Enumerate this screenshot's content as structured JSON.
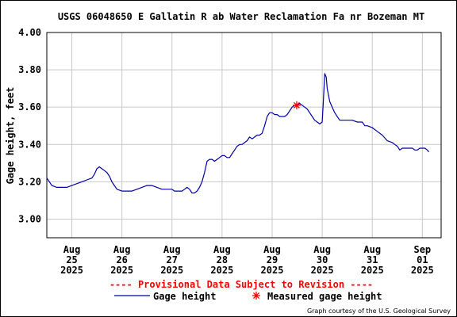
{
  "chart_data": {
    "type": "line",
    "title": "USGS 06048650 E Gallatin R ab Water Reclamation Fa nr Bozeman MT",
    "ylabel": "Gage height, feet",
    "xlabel": "",
    "xlim": [
      0,
      7.5
    ],
    "ylim": [
      2.9,
      4.0
    ],
    "yticks": [
      3.0,
      3.2,
      3.4,
      3.6,
      3.8,
      4.0
    ],
    "ytick_labels": [
      "3.00",
      "3.20",
      "3.40",
      "3.60",
      "3.80",
      "4.00"
    ],
    "xticks": [
      {
        "pos": 0.5,
        "lines": [
          "Aug",
          "25",
          "2025"
        ]
      },
      {
        "pos": 1.5,
        "lines": [
          "Aug",
          "26",
          "2025"
        ]
      },
      {
        "pos": 2.5,
        "lines": [
          "Aug",
          "27",
          "2025"
        ]
      },
      {
        "pos": 3.5,
        "lines": [
          "Aug",
          "28",
          "2025"
        ]
      },
      {
        "pos": 4.5,
        "lines": [
          "Aug",
          "29",
          "2025"
        ]
      },
      {
        "pos": 5.5,
        "lines": [
          "Aug",
          "30",
          "2025"
        ]
      },
      {
        "pos": 6.5,
        "lines": [
          "Aug",
          "31",
          "2025"
        ]
      },
      {
        "pos": 7.5,
        "lines": [
          "Sep",
          "01",
          "2025"
        ]
      }
    ],
    "grid": true,
    "series": [
      {
        "name": "Gage height",
        "color": "#0000aa",
        "points": [
          [
            0.0,
            3.22
          ],
          [
            0.05,
            3.2
          ],
          [
            0.1,
            3.18
          ],
          [
            0.2,
            3.17
          ],
          [
            0.3,
            3.17
          ],
          [
            0.4,
            3.17
          ],
          [
            0.5,
            3.18
          ],
          [
            0.6,
            3.19
          ],
          [
            0.7,
            3.2
          ],
          [
            0.8,
            3.21
          ],
          [
            0.9,
            3.22
          ],
          [
            0.95,
            3.24
          ],
          [
            1.0,
            3.27
          ],
          [
            1.05,
            3.28
          ],
          [
            1.1,
            3.27
          ],
          [
            1.15,
            3.26
          ],
          [
            1.2,
            3.25
          ],
          [
            1.25,
            3.23
          ],
          [
            1.3,
            3.2
          ],
          [
            1.35,
            3.18
          ],
          [
            1.4,
            3.16
          ],
          [
            1.5,
            3.15
          ],
          [
            1.6,
            3.15
          ],
          [
            1.7,
            3.15
          ],
          [
            1.8,
            3.16
          ],
          [
            1.9,
            3.17
          ],
          [
            2.0,
            3.18
          ],
          [
            2.1,
            3.18
          ],
          [
            2.2,
            3.17
          ],
          [
            2.3,
            3.16
          ],
          [
            2.4,
            3.16
          ],
          [
            2.5,
            3.16
          ],
          [
            2.55,
            3.15
          ],
          [
            2.6,
            3.15
          ],
          [
            2.7,
            3.15
          ],
          [
            2.75,
            3.16
          ],
          [
            2.8,
            3.17
          ],
          [
            2.85,
            3.16
          ],
          [
            2.9,
            3.14
          ],
          [
            2.95,
            3.14
          ],
          [
            3.0,
            3.15
          ],
          [
            3.05,
            3.17
          ],
          [
            3.1,
            3.2
          ],
          [
            3.15,
            3.25
          ],
          [
            3.2,
            3.31
          ],
          [
            3.25,
            3.32
          ],
          [
            3.3,
            3.32
          ],
          [
            3.35,
            3.31
          ],
          [
            3.4,
            3.32
          ],
          [
            3.45,
            3.33
          ],
          [
            3.5,
            3.34
          ],
          [
            3.55,
            3.34
          ],
          [
            3.6,
            3.33
          ],
          [
            3.65,
            3.33
          ],
          [
            3.7,
            3.35
          ],
          [
            3.75,
            3.37
          ],
          [
            3.8,
            3.39
          ],
          [
            3.85,
            3.4
          ],
          [
            3.9,
            3.4
          ],
          [
            3.95,
            3.41
          ],
          [
            4.0,
            3.42
          ],
          [
            4.05,
            3.44
          ],
          [
            4.1,
            3.43
          ],
          [
            4.15,
            3.44
          ],
          [
            4.2,
            3.45
          ],
          [
            4.25,
            3.45
          ],
          [
            4.3,
            3.46
          ],
          [
            4.35,
            3.5
          ],
          [
            4.4,
            3.55
          ],
          [
            4.45,
            3.57
          ],
          [
            4.5,
            3.57
          ],
          [
            4.55,
            3.56
          ],
          [
            4.6,
            3.56
          ],
          [
            4.65,
            3.55
          ],
          [
            4.7,
            3.55
          ],
          [
            4.75,
            3.55
          ],
          [
            4.8,
            3.56
          ],
          [
            4.85,
            3.58
          ],
          [
            4.9,
            3.6
          ],
          [
            4.95,
            3.61
          ],
          [
            5.0,
            3.61
          ],
          [
            5.05,
            3.62
          ],
          [
            5.1,
            3.61
          ],
          [
            5.15,
            3.6
          ],
          [
            5.2,
            3.59
          ],
          [
            5.25,
            3.57
          ],
          [
            5.3,
            3.55
          ],
          [
            5.35,
            3.53
          ],
          [
            5.4,
            3.52
          ],
          [
            5.45,
            3.51
          ],
          [
            5.5,
            3.52
          ],
          [
            5.52,
            3.62
          ],
          [
            5.55,
            3.78
          ],
          [
            5.58,
            3.76
          ],
          [
            5.6,
            3.7
          ],
          [
            5.65,
            3.63
          ],
          [
            5.7,
            3.6
          ],
          [
            5.75,
            3.57
          ],
          [
            5.8,
            3.55
          ],
          [
            5.85,
            3.53
          ],
          [
            5.9,
            3.53
          ],
          [
            6.0,
            3.53
          ],
          [
            6.1,
            3.53
          ],
          [
            6.2,
            3.52
          ],
          [
            6.3,
            3.52
          ],
          [
            6.35,
            3.5
          ],
          [
            6.4,
            3.5
          ],
          [
            6.5,
            3.49
          ],
          [
            6.6,
            3.47
          ],
          [
            6.7,
            3.45
          ],
          [
            6.8,
            3.42
          ],
          [
            6.9,
            3.41
          ],
          [
            6.95,
            3.4
          ],
          [
            7.0,
            3.39
          ],
          [
            7.05,
            3.37
          ],
          [
            7.1,
            3.38
          ],
          [
            7.15,
            3.38
          ],
          [
            7.2,
            3.38
          ],
          [
            7.25,
            3.38
          ],
          [
            7.3,
            3.38
          ],
          [
            7.35,
            3.37
          ],
          [
            7.4,
            3.37
          ],
          [
            7.45,
            3.38
          ],
          [
            7.5,
            3.38
          ],
          [
            7.55,
            3.38
          ],
          [
            7.6,
            3.37
          ],
          [
            7.63,
            3.36
          ]
        ]
      }
    ],
    "measurements": [
      {
        "name": "Measured gage height",
        "color": "#ff0000",
        "x": 4.99,
        "y": 3.61
      }
    ],
    "notice": "---- Provisional Data Subject to Revision ----",
    "legend": [
      {
        "label": "Gage height",
        "kind": "line",
        "color": "#0000aa"
      },
      {
        "label": "Measured gage height",
        "kind": "asterisk",
        "color": "#ff0000"
      }
    ],
    "credit": "Graph courtesy of the U.S. Geological Survey"
  }
}
